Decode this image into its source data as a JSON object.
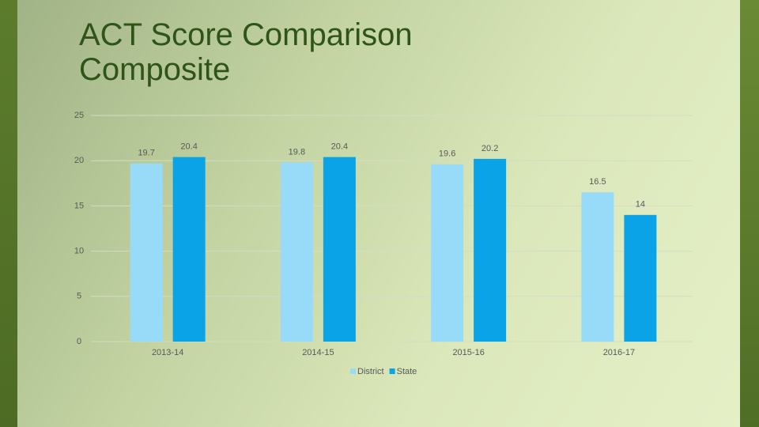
{
  "chart_data": {
    "type": "bar",
    "title": "ACT Score Comparison",
    "subtitle": "Composite",
    "categories": [
      "2013-14",
      "2014-15",
      "2015-16",
      "2016-17"
    ],
    "series": [
      {
        "name": "District",
        "color": "#97dbf8",
        "values": [
          19.7,
          19.8,
          19.6,
          16.5
        ]
      },
      {
        "name": "State",
        "color": "#0aa3e8",
        "values": [
          20.4,
          20.4,
          20.2,
          14
        ]
      }
    ],
    "ylim": [
      0,
      25
    ],
    "yticks": [
      0,
      5,
      10,
      15,
      20,
      25
    ],
    "grid": true,
    "legend": "bottom"
  }
}
